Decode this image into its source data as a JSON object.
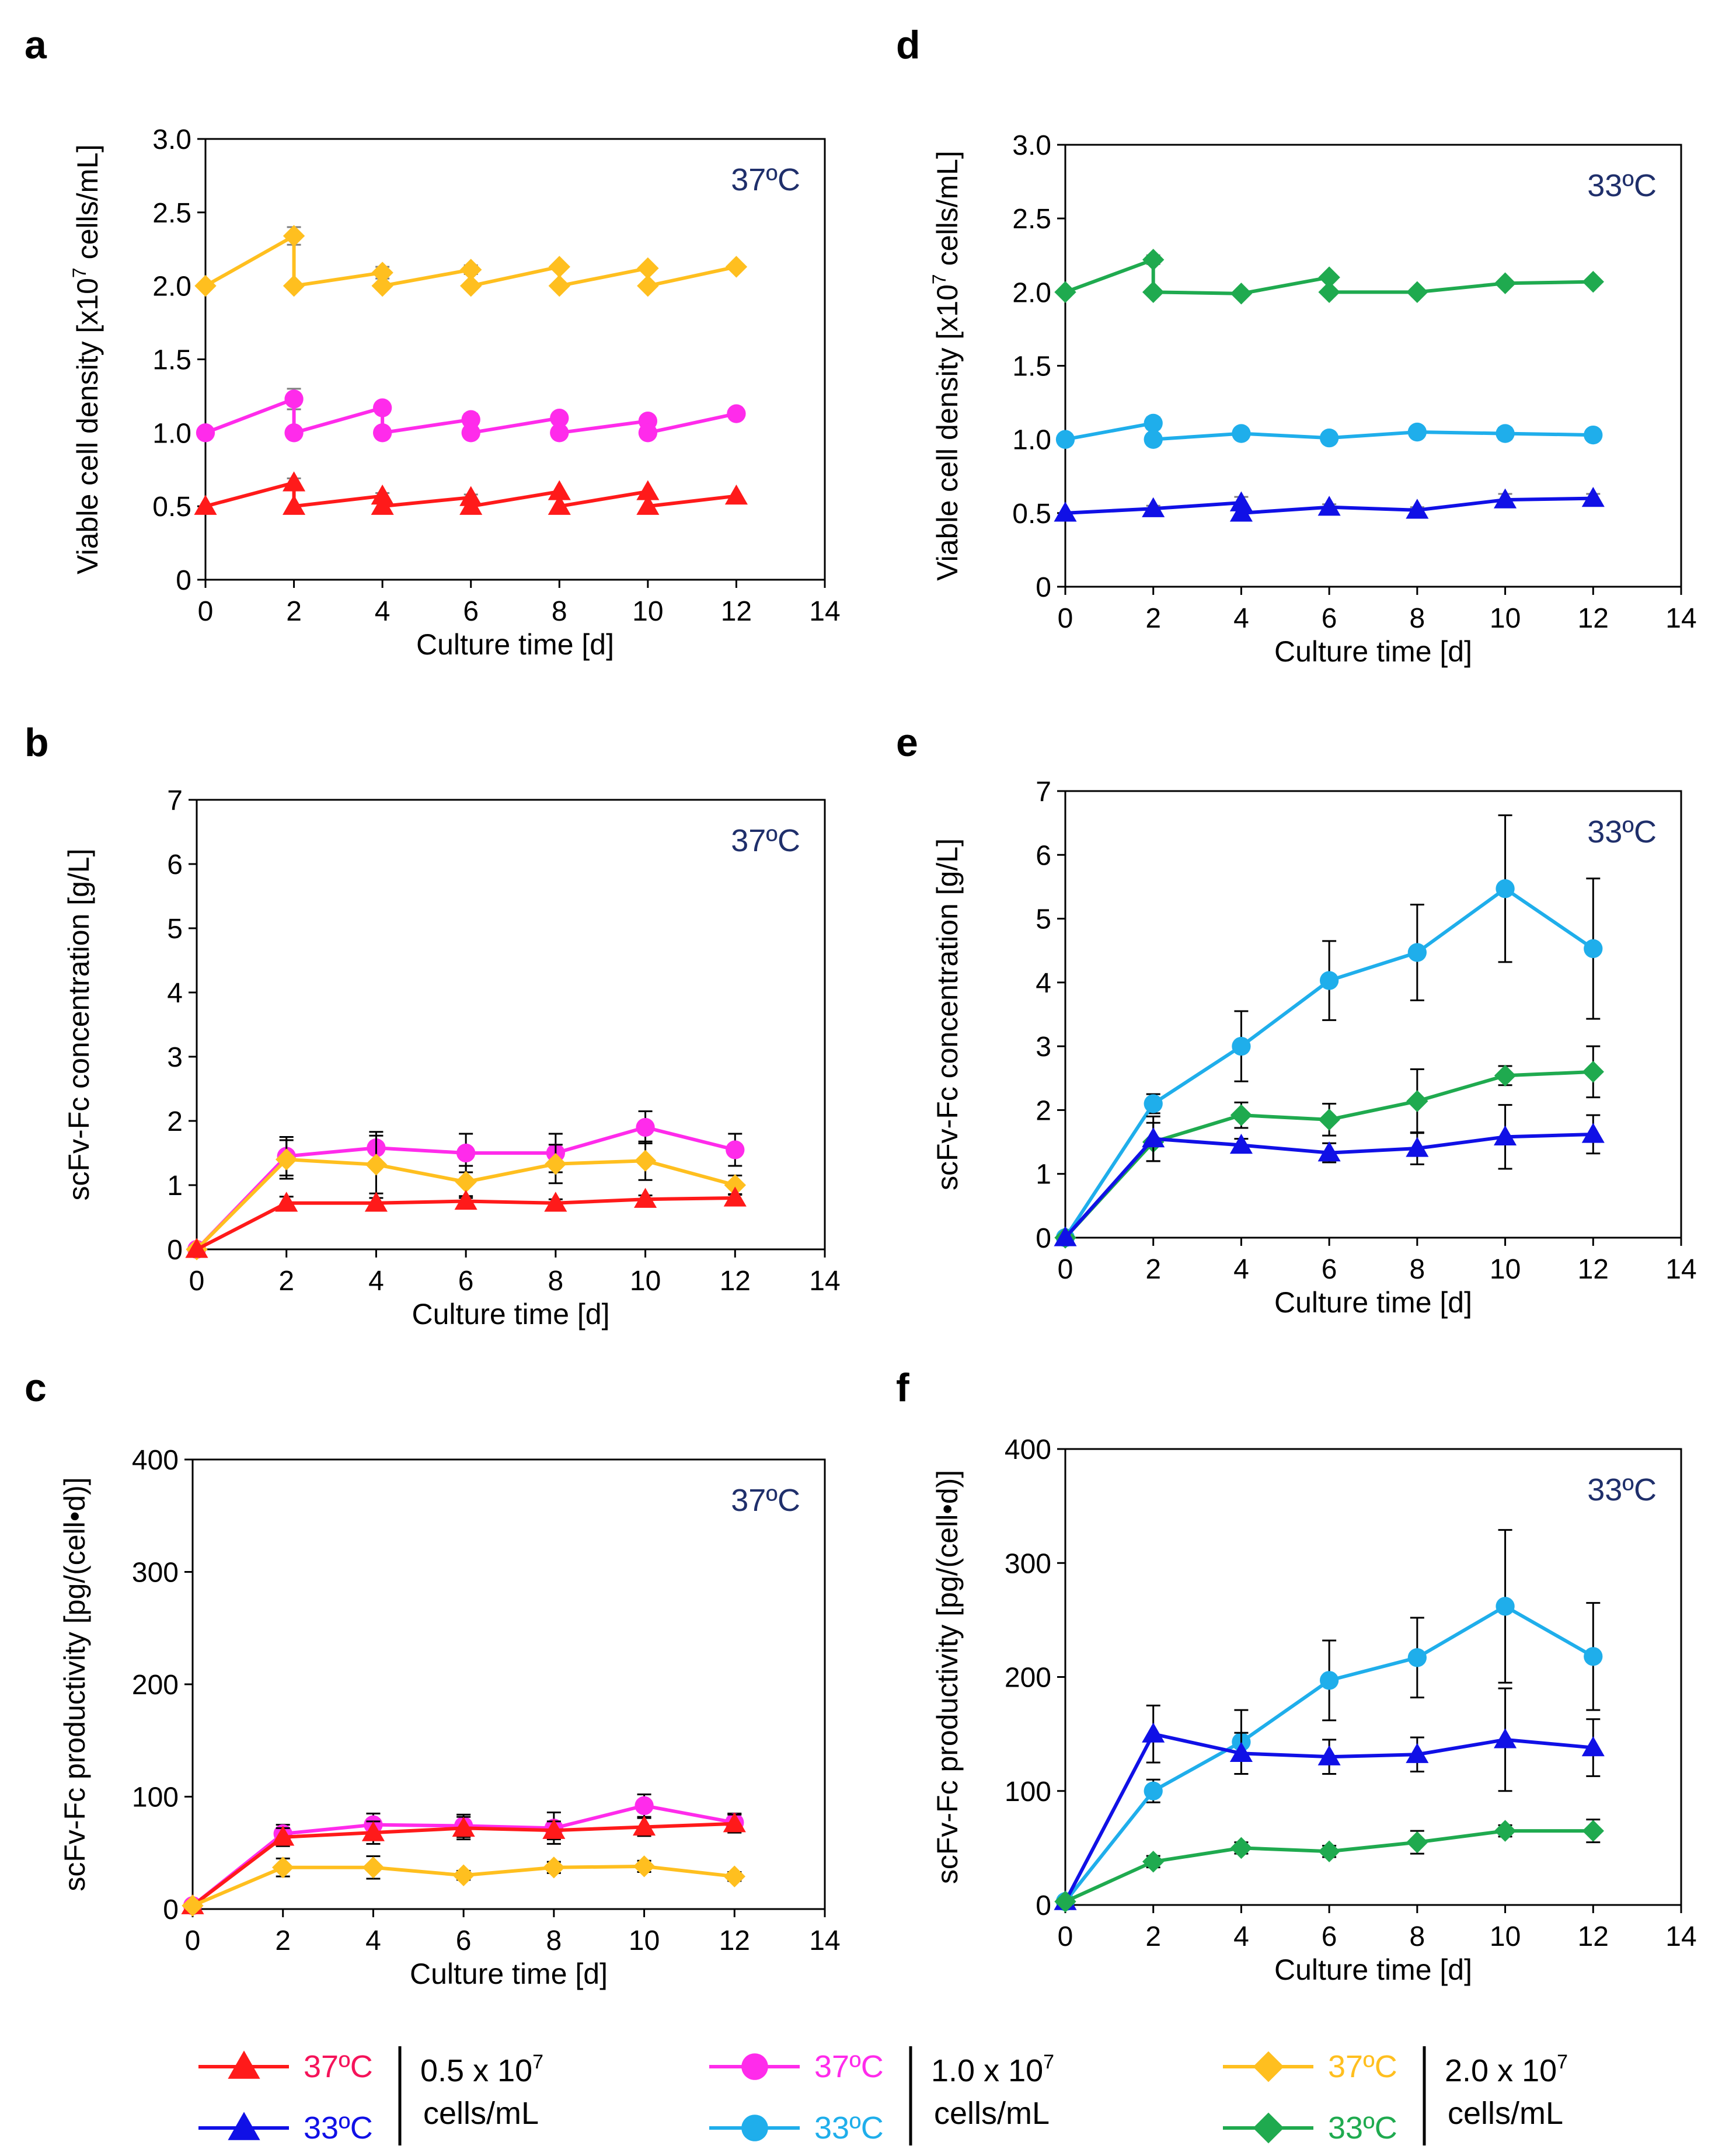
{
  "chart_data": [
    {
      "id": "a",
      "type": "line",
      "panel_label": "a",
      "temp_label": "37ºC",
      "xlabel": "Culture time [d]",
      "ylabel": "Viable cell density [x10",
      "ylabel_sup": "7",
      "ylabel_tail": " cells/mL]",
      "xlim": [
        0,
        14
      ],
      "ylim": [
        0,
        3.0
      ],
      "xticks": [
        "0",
        "2",
        "4",
        "6",
        "8",
        "10",
        "12",
        "14"
      ],
      "yticks": [
        "0",
        "0.5",
        "1.0",
        "1.5",
        "2.0",
        "2.5",
        "3.0"
      ],
      "series": [
        {
          "name": "37ºC 2.0 x 10^7",
          "color": "#FFBF1F",
          "marker": "diamond",
          "x": [
            0,
            2,
            2,
            4,
            4,
            6,
            6,
            8,
            8,
            10,
            10,
            12
          ],
          "y": [
            2.0,
            2.34,
            2.0,
            2.09,
            2.0,
            2.11,
            2.0,
            2.13,
            2.0,
            2.12,
            2.0,
            2.13
          ],
          "err": [
            0,
            0.06,
            0,
            0.04,
            0,
            0.03,
            0,
            0,
            0,
            0,
            0,
            0
          ]
        },
        {
          "name": "37ºC 1.0 x 10^7",
          "color": "#FF2BEB",
          "marker": "circle",
          "x": [
            0,
            2,
            2,
            4,
            4,
            6,
            6,
            8,
            8,
            10,
            10,
            12
          ],
          "y": [
            1.0,
            1.23,
            1.0,
            1.17,
            1.0,
            1.09,
            1.0,
            1.1,
            1.0,
            1.08,
            1.0,
            1.13
          ],
          "err": [
            0,
            0.07,
            0,
            0.02,
            0,
            0.04,
            0,
            0,
            0,
            0,
            0,
            0
          ]
        },
        {
          "name": "37ºC 0.5 x 10^7",
          "color": "#FF1A1A",
          "marker": "triangle",
          "x": [
            0,
            2,
            2,
            4,
            4,
            6,
            6,
            8,
            8,
            10,
            10,
            12
          ],
          "y": [
            0.5,
            0.66,
            0.5,
            0.57,
            0.5,
            0.56,
            0.5,
            0.6,
            0.5,
            0.6,
            0.5,
            0.57
          ],
          "err": [
            0,
            0.03,
            0,
            0.02,
            0,
            0.02,
            0,
            0,
            0,
            0,
            0,
            0
          ]
        }
      ]
    },
    {
      "id": "b",
      "type": "line",
      "panel_label": "b",
      "temp_label": "37ºC",
      "xlabel": "Culture time [d]",
      "ylabel": "scFv-Fc concentration [g/L]",
      "xlim": [
        0,
        14
      ],
      "ylim": [
        0,
        7
      ],
      "xticks": [
        "0",
        "2",
        "4",
        "6",
        "8",
        "10",
        "12",
        "14"
      ],
      "yticks": [
        "0",
        "1",
        "2",
        "3",
        "4",
        "5",
        "6",
        "7"
      ],
      "series": [
        {
          "name": "37ºC 1.0 x 10^7",
          "color": "#FF2BEB",
          "marker": "circle",
          "x": [
            0,
            2,
            4,
            6,
            8,
            10,
            12
          ],
          "y": [
            0,
            1.45,
            1.58,
            1.5,
            1.5,
            1.9,
            1.55
          ],
          "err": [
            0,
            0.3,
            0.25,
            0.3,
            0.3,
            0.25,
            0.25
          ]
        },
        {
          "name": "37ºC 2.0 x 10^7",
          "color": "#FFBF1F",
          "marker": "diamond",
          "x": [
            0,
            2,
            4,
            6,
            8,
            10,
            12
          ],
          "y": [
            0,
            1.4,
            1.32,
            1.05,
            1.33,
            1.38,
            1.0
          ],
          "err": [
            0,
            0.3,
            0.45,
            0.25,
            0.3,
            0.3,
            0.15
          ]
        },
        {
          "name": "37ºC 0.5 x 10^7",
          "color": "#FF1A1A",
          "marker": "triangle",
          "x": [
            0,
            2,
            4,
            6,
            8,
            10,
            12
          ],
          "y": [
            0,
            0.72,
            0.72,
            0.75,
            0.72,
            0.78,
            0.8
          ],
          "err": [
            0,
            0.1,
            0.08,
            0.08,
            0.06,
            0.06,
            0.06
          ]
        }
      ]
    },
    {
      "id": "c",
      "type": "line",
      "panel_label": "c",
      "temp_label": "37ºC",
      "xlabel": "Culture time [d]",
      "ylabel": "scFv-Fc productivity [pg/(cell•d)]",
      "xlim": [
        0,
        14
      ],
      "ylim": [
        0,
        400
      ],
      "xticks": [
        "0",
        "2",
        "4",
        "6",
        "8",
        "10",
        "12",
        "14"
      ],
      "yticks": [
        "0",
        "100",
        "200",
        "300",
        "400"
      ],
      "series": [
        {
          "name": "37ºC 1.0 x 10^7",
          "color": "#FF2BEB",
          "marker": "circle",
          "x": [
            0,
            2,
            4,
            6,
            8,
            10,
            12
          ],
          "y": [
            3,
            67,
            75,
            74,
            72,
            92,
            77
          ],
          "err": [
            0,
            8,
            10,
            10,
            14,
            10,
            8
          ]
        },
        {
          "name": "37ºC 0.5 x 10^7",
          "color": "#FF1A1A",
          "marker": "triangle",
          "x": [
            0,
            2,
            4,
            6,
            8,
            10,
            12
          ],
          "y": [
            3,
            64,
            68,
            72,
            70,
            73,
            76
          ],
          "err": [
            0,
            8,
            10,
            10,
            8,
            8,
            8
          ]
        },
        {
          "name": "37ºC 2.0 x 10^7",
          "color": "#FFBF1F",
          "marker": "diamond",
          "x": [
            0,
            2,
            4,
            6,
            8,
            10,
            12
          ],
          "y": [
            3,
            37,
            37,
            30,
            37,
            38,
            29
          ],
          "err": [
            0,
            8,
            10,
            4,
            5,
            5,
            4
          ]
        }
      ]
    },
    {
      "id": "d",
      "type": "line",
      "panel_label": "d",
      "temp_label": "33ºC",
      "xlabel": "Culture time [d]",
      "ylabel": "Viable cell density [x10",
      "ylabel_sup": "7",
      "ylabel_tail": " cells/mL]",
      "xlim": [
        0,
        14
      ],
      "ylim": [
        0,
        3.0
      ],
      "xticks": [
        "0",
        "2",
        "4",
        "6",
        "8",
        "10",
        "12",
        "14"
      ],
      "yticks": [
        "0",
        "0.5",
        "1.0",
        "1.5",
        "2.0",
        "2.5",
        "3.0"
      ],
      "series": [
        {
          "name": "33ºC 2.0 x 10^7",
          "color": "#1FAA4F",
          "marker": "diamond",
          "x": [
            0,
            2,
            2,
            4,
            6,
            6,
            8,
            10,
            12
          ],
          "y": [
            2.0,
            2.22,
            2.0,
            1.99,
            2.1,
            2.0,
            2.0,
            2.06,
            2.07
          ],
          "err": [
            0,
            0.03,
            0,
            0.02,
            0,
            0,
            0,
            0,
            0
          ]
        },
        {
          "name": "33ºC 1.0 x 10^7",
          "color": "#1FAEEB",
          "marker": "circle",
          "x": [
            0,
            2,
            2,
            4,
            6,
            8,
            10,
            12
          ],
          "y": [
            1.0,
            1.11,
            1.0,
            1.04,
            1.01,
            1.05,
            1.04,
            1.03
          ],
          "err": [
            0,
            0.04,
            0,
            0.02,
            0.02,
            0.02,
            0.04,
            0.02
          ]
        },
        {
          "name": "33ºC 0.5 x 10^7",
          "color": "#1010E6",
          "marker": "triangle",
          "x": [
            0,
            2,
            4,
            4,
            6,
            8,
            10,
            12
          ],
          "y": [
            0.5,
            0.53,
            0.57,
            0.5,
            0.54,
            0.52,
            0.59,
            0.6
          ],
          "err": [
            0,
            0.02,
            0.04,
            0,
            0.02,
            0.02,
            0.04,
            0.03
          ]
        }
      ]
    },
    {
      "id": "e",
      "type": "line",
      "panel_label": "e",
      "temp_label": "33ºC",
      "xlabel": "Culture time [d]",
      "ylabel": "scFv-Fc concentration [g/L]",
      "xlim": [
        0,
        14
      ],
      "ylim": [
        0,
        7
      ],
      "xticks": [
        "0",
        "2",
        "4",
        "6",
        "8",
        "10",
        "12",
        "14"
      ],
      "yticks": [
        "0",
        "1",
        "2",
        "3",
        "4",
        "5",
        "6",
        "7"
      ],
      "series": [
        {
          "name": "33ºC 1.0 x 10^7",
          "color": "#1FAEEB",
          "marker": "circle",
          "x": [
            0,
            2,
            4,
            6,
            8,
            10,
            12
          ],
          "y": [
            0,
            2.1,
            3.0,
            4.03,
            4.47,
            5.47,
            4.53
          ],
          "err": [
            0,
            0.15,
            0.55,
            0.62,
            0.75,
            1.15,
            1.1
          ]
        },
        {
          "name": "33ºC 2.0 x 10^7",
          "color": "#1FAA4F",
          "marker": "diamond",
          "x": [
            0,
            2,
            4,
            6,
            8,
            10,
            12
          ],
          "y": [
            0,
            1.5,
            1.92,
            1.85,
            2.14,
            2.54,
            2.6
          ],
          "err": [
            0,
            0.3,
            0.2,
            0.25,
            0.5,
            0.15,
            0.4
          ]
        },
        {
          "name": "33ºC 0.5 x 10^7",
          "color": "#1010E6",
          "marker": "triangle",
          "x": [
            0,
            2,
            4,
            6,
            8,
            10,
            12
          ],
          "y": [
            0,
            1.55,
            1.45,
            1.33,
            1.4,
            1.58,
            1.62
          ],
          "err": [
            0,
            0.35,
            0.1,
            0.15,
            0.25,
            0.5,
            0.3
          ]
        }
      ]
    },
    {
      "id": "f",
      "type": "line",
      "panel_label": "f",
      "temp_label": "33ºC",
      "xlabel": "Culture time [d]",
      "ylabel": "scFv-Fc productivity [pg/(cell•d)]",
      "xlim": [
        0,
        14
      ],
      "ylim": [
        0,
        400
      ],
      "xticks": [
        "0",
        "2",
        "4",
        "6",
        "8",
        "10",
        "12",
        "14"
      ],
      "yticks": [
        "0",
        "100",
        "200",
        "300",
        "400"
      ],
      "series": [
        {
          "name": "33ºC 1.0 x 10^7",
          "color": "#1FAEEB",
          "marker": "circle",
          "x": [
            0,
            2,
            4,
            6,
            8,
            10,
            12
          ],
          "y": [
            3,
            100,
            143,
            197,
            217,
            262,
            218
          ],
          "err": [
            0,
            10,
            28,
            35,
            35,
            67,
            47
          ]
        },
        {
          "name": "33ºC 0.5 x 10^7",
          "color": "#1010E6",
          "marker": "triangle",
          "x": [
            0,
            2,
            4,
            6,
            8,
            10,
            12
          ],
          "y": [
            3,
            150,
            133,
            130,
            132,
            145,
            138
          ],
          "err": [
            0,
            25,
            18,
            15,
            15,
            45,
            25
          ]
        },
        {
          "name": "33ºC 2.0 x 10^7",
          "color": "#1FAA4F",
          "marker": "diamond",
          "x": [
            0,
            2,
            4,
            6,
            8,
            10,
            12
          ],
          "y": [
            3,
            38,
            50,
            47,
            55,
            65,
            65
          ],
          "err": [
            0,
            5,
            5,
            5,
            10,
            5,
            10
          ]
        }
      ]
    }
  ],
  "legend": {
    "groups": [
      {
        "entries": [
          {
            "label": "37ºC",
            "color": "#FF1A1A",
            "text_color": "#F5135A",
            "marker": "triangle"
          },
          {
            "label": "33ºC",
            "color": "#1010E6",
            "text_color": "#1010E6",
            "marker": "triangle"
          }
        ],
        "line1": "0.5 x 10",
        "sup": "7",
        "line2": "cells/mL"
      },
      {
        "entries": [
          {
            "label": "37ºC",
            "color": "#FF2BEB",
            "text_color": "#FF2BEB",
            "marker": "circle"
          },
          {
            "label": "33ºC",
            "color": "#1FAEEB",
            "text_color": "#1FAEEB",
            "marker": "circle"
          }
        ],
        "line1": "1.0 x 10",
        "sup": "7",
        "line2": "cells/mL"
      },
      {
        "entries": [
          {
            "label": "37ºC",
            "color": "#FFBF1F",
            "text_color": "#FFBF1F",
            "marker": "diamond"
          },
          {
            "label": "33ºC",
            "color": "#1FAA4F",
            "text_color": "#1FAA4F",
            "marker": "diamond"
          }
        ],
        "line1": "2.0 x 10",
        "sup": "7",
        "line2": "cells/mL"
      }
    ]
  },
  "colors": {
    "temp_label": "#1F2F6B",
    "axis": "#000000",
    "errorbar_gray": "#7F7F7F"
  }
}
